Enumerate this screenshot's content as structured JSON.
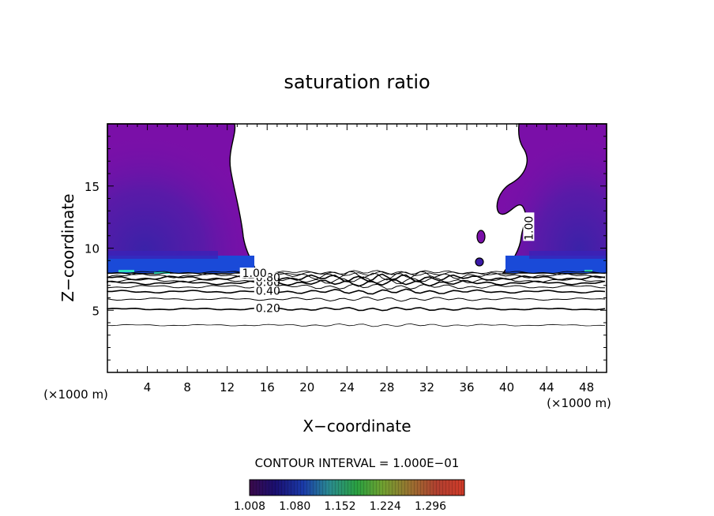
{
  "chart_data": {
    "type": "contour",
    "title": "saturation ratio",
    "xlabel": "X−coordinate",
    "ylabel": "Z−coordinate",
    "x_unit": "(×1000 m)",
    "x_unit_right": "(×1000 m)",
    "xlim": [
      0,
      50
    ],
    "ylim": [
      0,
      20
    ],
    "xticks": [
      4,
      8,
      12,
      16,
      20,
      24,
      28,
      32,
      36,
      40,
      44,
      48
    ],
    "xtick_labels": [
      "4",
      "8",
      "12",
      "16",
      "20",
      "24",
      "28",
      "32",
      "36",
      "40",
      "44",
      "48"
    ],
    "yticks": [
      5,
      10,
      15
    ],
    "ytick_labels": [
      "5",
      "10",
      "15"
    ],
    "contour_interval_text": "CONTOUR INTERVAL = 1.000E−01",
    "colorbar": {
      "ticks": [
        "1.008",
        "1.080",
        "1.152",
        "1.224",
        "1.296"
      ],
      "min": 1.008,
      "max": 1.35
    },
    "contour_lines": [
      {
        "level": 0.2,
        "label": "0.20",
        "z": 5.1
      },
      {
        "level": 0.3,
        "label": "",
        "z": 5.9
      },
      {
        "level": 0.4,
        "label": "0.40",
        "z": 6.5
      },
      {
        "level": 0.5,
        "label": "",
        "z": 6.9
      },
      {
        "level": 0.6,
        "label": "0.60",
        "z": 7.2
      },
      {
        "level": 0.7,
        "label": "",
        "z": 7.4
      },
      {
        "level": 0.8,
        "label": "0.80",
        "z": 7.6
      },
      {
        "level": 0.9,
        "label": "",
        "z": 7.8
      }
    ],
    "contour_labels": [
      {
        "text": "1.00",
        "x": 13.5,
        "z": 7.8
      },
      {
        "text": "1.00",
        "x": 42.2,
        "z": 11.6
      }
    ]
  }
}
